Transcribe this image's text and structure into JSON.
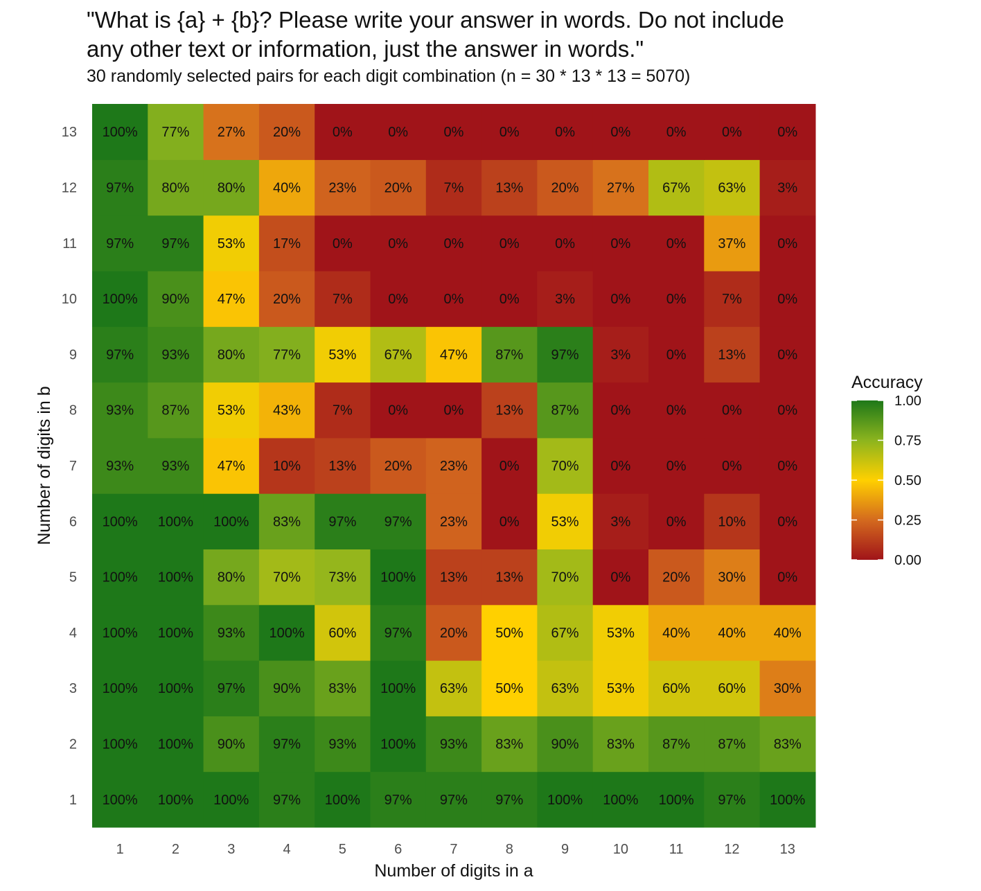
{
  "chart_data": {
    "type": "heatmap",
    "title": "\"What is {a} + {b}? Please write your answer in words. Do not include\nany other text or information, just the answer in words.\"",
    "subtitle": "30 randomly selected pairs for each digit combination (n = 30 * 13 * 13 = 5070)",
    "xlabel": "Number of digits in a",
    "ylabel": "Number of digits in b",
    "x_categories": [
      "1",
      "2",
      "3",
      "4",
      "5",
      "6",
      "7",
      "8",
      "9",
      "10",
      "11",
      "12",
      "13"
    ],
    "y_categories": [
      "1",
      "2",
      "3",
      "4",
      "5",
      "6",
      "7",
      "8",
      "9",
      "10",
      "11",
      "12",
      "13"
    ],
    "values_by_b": {
      "1": [
        100,
        100,
        100,
        97,
        100,
        97,
        97,
        97,
        100,
        100,
        100,
        97,
        100
      ],
      "2": [
        100,
        100,
        90,
        97,
        93,
        100,
        93,
        83,
        90,
        83,
        87,
        87,
        83
      ],
      "3": [
        100,
        100,
        97,
        90,
        83,
        100,
        63,
        50,
        63,
        53,
        60,
        60,
        30
      ],
      "4": [
        100,
        100,
        93,
        100,
        60,
        97,
        20,
        50,
        67,
        53,
        40,
        40,
        40
      ],
      "5": [
        100,
        100,
        80,
        70,
        73,
        100,
        13,
        13,
        70,
        0,
        20,
        30,
        0
      ],
      "6": [
        100,
        100,
        100,
        83,
        97,
        97,
        23,
        0,
        53,
        3,
        0,
        10,
        0
      ],
      "7": [
        93,
        93,
        47,
        10,
        13,
        20,
        23,
        0,
        70,
        0,
        0,
        0,
        0
      ],
      "8": [
        93,
        87,
        53,
        43,
        7,
        0,
        0,
        13,
        87,
        0,
        0,
        0,
        0
      ],
      "9": [
        97,
        93,
        80,
        77,
        53,
        67,
        47,
        87,
        97,
        3,
        0,
        13,
        0
      ],
      "10": [
        100,
        90,
        47,
        20,
        7,
        0,
        0,
        0,
        3,
        0,
        0,
        7,
        0
      ],
      "11": [
        97,
        97,
        53,
        17,
        0,
        0,
        0,
        0,
        0,
        0,
        0,
        37,
        0
      ],
      "12": [
        97,
        80,
        80,
        40,
        23,
        20,
        7,
        13,
        20,
        27,
        67,
        63,
        3
      ],
      "13": [
        100,
        77,
        27,
        20,
        0,
        0,
        0,
        0,
        0,
        0,
        0,
        0,
        0
      ]
    },
    "value_suffix": "%",
    "legend": {
      "title": "Accuracy",
      "ticks": [
        "1.00",
        "0.75",
        "0.50",
        "0.25",
        "0.00"
      ],
      "range": [
        0,
        1
      ],
      "placement": "right"
    },
    "color_scale": [
      {
        "stop": 0.0,
        "color": "#a01419"
      },
      {
        "stop": 0.25,
        "color": "#d46a1e"
      },
      {
        "stop": 0.5,
        "color": "#ffd000"
      },
      {
        "stop": 0.75,
        "color": "#8cb41e"
      },
      {
        "stop": 1.0,
        "color": "#1e7819"
      }
    ],
    "grid": false
  }
}
